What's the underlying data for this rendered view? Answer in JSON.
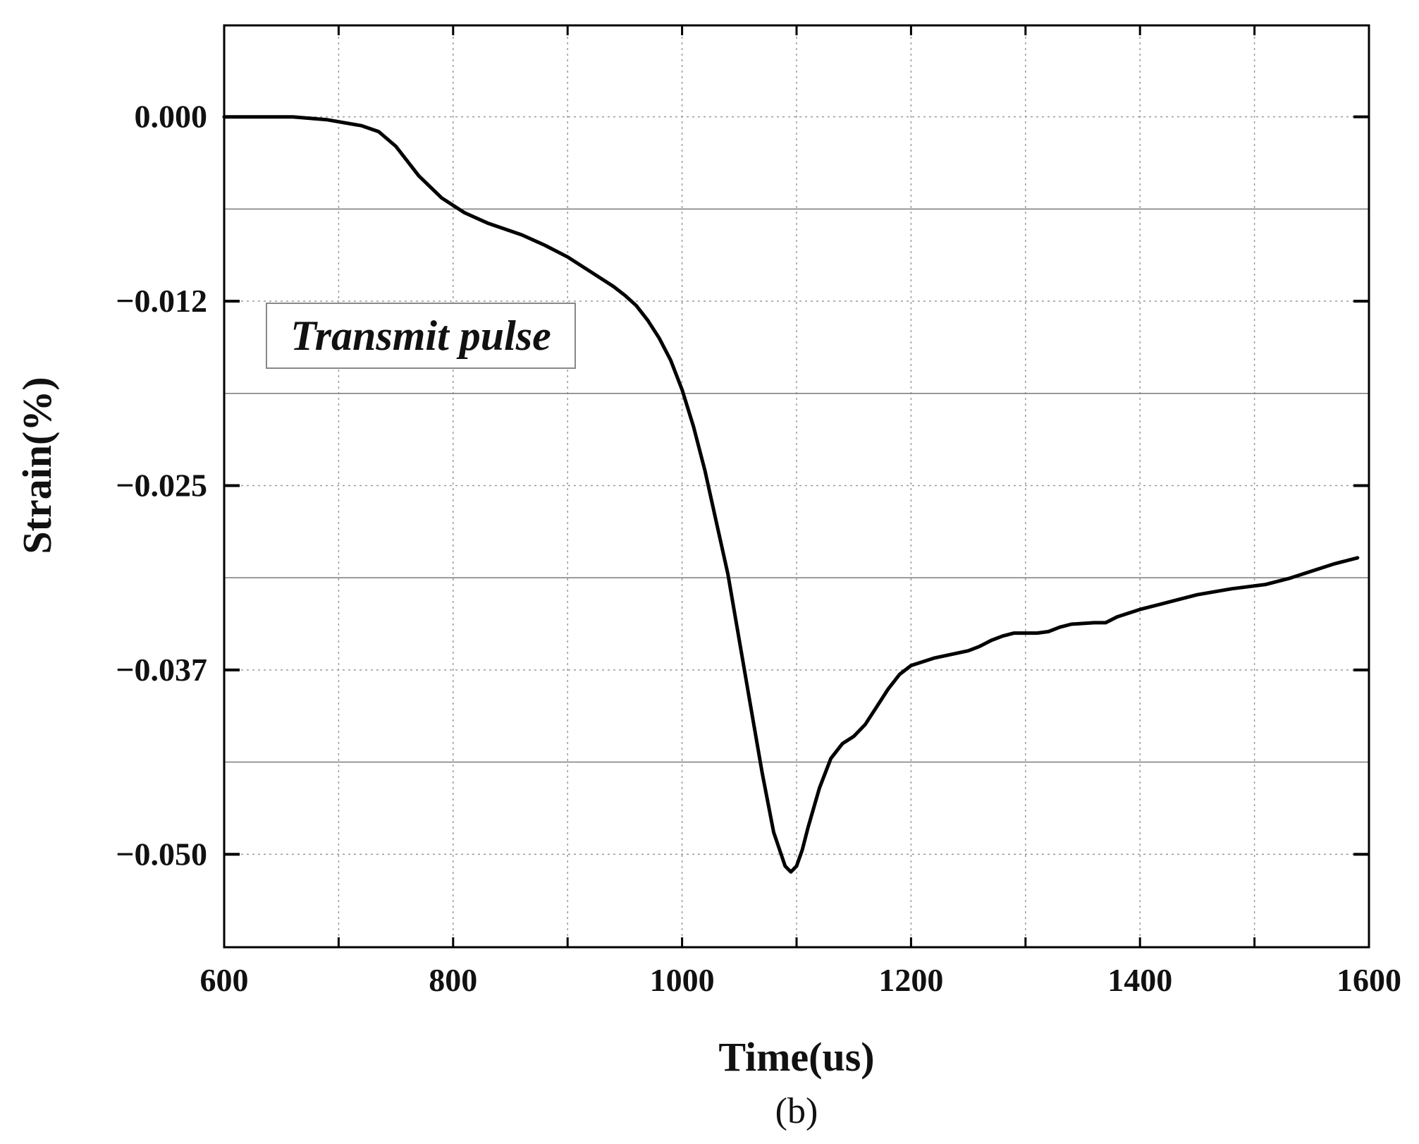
{
  "chart_data": {
    "type": "line",
    "xlabel": "Time(us)",
    "ylabel": "Strain(%)",
    "caption": "(b)",
    "annotation": "Transmit pulse",
    "xlim": [
      600,
      1600
    ],
    "ylim": [
      -0.0563,
      0.0062
    ],
    "x_ticks": [
      600,
      800,
      1000,
      1200,
      1400,
      1600
    ],
    "x_tick_labels": [
      "600",
      "800",
      "1000",
      "1200",
      "1400",
      "1600"
    ],
    "y_ticks": [
      0.0,
      -0.0125,
      -0.025,
      -0.0375,
      -0.05
    ],
    "y_tick_labels": [
      "0.000",
      "−0.012",
      "−0.025",
      "−0.037",
      "−0.050"
    ],
    "grid": true,
    "line_color": "#000000",
    "series": [
      {
        "x": [
          600,
          630,
          660,
          690,
          720,
          735,
          750,
          770,
          790,
          810,
          830,
          860,
          880,
          900,
          920,
          940,
          950,
          960,
          970,
          980,
          990,
          1000,
          1010,
          1020,
          1030,
          1040,
          1050,
          1060,
          1070,
          1080,
          1090,
          1095,
          1100,
          1105,
          1110,
          1120,
          1130,
          1140,
          1150,
          1160,
          1170,
          1180,
          1190,
          1200,
          1220,
          1250,
          1260,
          1270,
          1280,
          1290,
          1300,
          1310,
          1320,
          1330,
          1340,
          1360,
          1370,
          1380,
          1400,
          1430,
          1450,
          1480,
          1510,
          1530,
          1550,
          1570,
          1590
        ],
        "y": [
          0.0,
          0.0,
          0.0,
          -0.0002,
          -0.0006,
          -0.001,
          -0.002,
          -0.004,
          -0.0055,
          -0.0065,
          -0.0072,
          -0.008,
          -0.0087,
          -0.0095,
          -0.0105,
          -0.0115,
          -0.0121,
          -0.0128,
          -0.0138,
          -0.015,
          -0.0165,
          -0.0185,
          -0.021,
          -0.024,
          -0.0275,
          -0.031,
          -0.0355,
          -0.04,
          -0.0445,
          -0.0485,
          -0.0508,
          -0.0512,
          -0.0508,
          -0.0497,
          -0.0482,
          -0.0455,
          -0.0435,
          -0.0425,
          -0.042,
          -0.0412,
          -0.04,
          -0.0388,
          -0.0378,
          -0.0372,
          -0.0367,
          -0.0362,
          -0.0359,
          -0.0355,
          -0.0352,
          -0.035,
          -0.035,
          -0.035,
          -0.0349,
          -0.0346,
          -0.0344,
          -0.0343,
          -0.0343,
          -0.0339,
          -0.0334,
          -0.0328,
          -0.0324,
          -0.032,
          -0.0317,
          -0.0313,
          -0.0308,
          -0.0303,
          -0.0299
        ]
      }
    ]
  }
}
